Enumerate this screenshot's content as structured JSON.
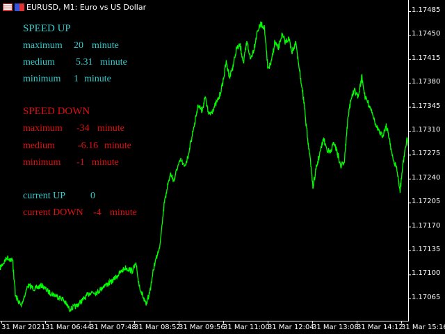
{
  "window": {
    "title": "EURUSD, M1:  Euro vs US Dollar",
    "icons": [
      "table-icon",
      "chart-type-icon"
    ]
  },
  "speed_up": {
    "title": "SPEED UP",
    "rows": [
      {
        "label": "maximum",
        "value": "20",
        "unit": "minute"
      },
      {
        "label": "medium",
        "value": "5.31",
        "unit": "minute"
      },
      {
        "label": "minimum",
        "value": "1",
        "unit": "minute"
      }
    ],
    "color": "#33cccc"
  },
  "speed_down": {
    "title": "SPEED DOWN",
    "rows": [
      {
        "label": "maximum",
        "value": "-34",
        "unit": "minute"
      },
      {
        "label": "medium",
        "value": "-6.16",
        "unit": "minute"
      },
      {
        "label": "minimum",
        "value": "-1",
        "unit": "minute"
      }
    ],
    "color": "#e01010"
  },
  "current": {
    "up_label": "current UP",
    "up_value": "0",
    "down_label": "current DOWN",
    "down_value": "-4",
    "down_unit": "minute"
  },
  "chart_data": {
    "type": "line",
    "symbol": "EURUSD",
    "timeframe": "M1",
    "line_color": "#00ff00",
    "y_ticks": [
      "1.17485",
      "1.17450",
      "1.17415",
      "1.17380",
      "1.17345",
      "1.17310",
      "1.17275",
      "1.17240",
      "1.17205",
      "1.17170",
      "1.17135",
      "1.17100",
      "1.17065"
    ],
    "x_ticks": [
      "31 Mar 2021",
      "31 Mar 06:44",
      "31 Mar 07:48",
      "31 Mar 08:52",
      "31 Mar 09:56",
      "31 Mar 11:00",
      "31 Mar 12:04",
      "31 Mar 13:08",
      "31 Mar 14:12",
      "31 Mar 15:16"
    ],
    "ylim": [
      1.17048,
      1.175
    ],
    "x": [
      "05:39",
      "05:49",
      "05:57",
      "06:01",
      "06:09",
      "06:19",
      "06:29",
      "06:39",
      "06:49",
      "06:59",
      "07:09",
      "07:19",
      "07:29",
      "07:39",
      "07:49",
      "07:59",
      "08:09",
      "08:19",
      "08:29",
      "08:39",
      "08:49",
      "08:54",
      "08:59",
      "09:09",
      "09:14",
      "09:21",
      "09:29",
      "09:34",
      "09:39",
      "09:44",
      "09:49",
      "09:54",
      "09:59",
      "10:04",
      "10:09",
      "10:14",
      "10:19",
      "10:24",
      "10:29",
      "10:34",
      "10:39",
      "10:44",
      "10:49",
      "10:54",
      "10:59",
      "11:04",
      "11:09",
      "11:14",
      "11:19",
      "11:24",
      "11:29",
      "11:34",
      "11:39",
      "11:44",
      "11:49",
      "11:54",
      "11:59",
      "12:04",
      "12:09",
      "12:14",
      "12:19",
      "12:24",
      "12:29",
      "12:34",
      "12:39",
      "12:44",
      "12:49",
      "12:54",
      "12:59",
      "13:04",
      "13:09",
      "13:14",
      "13:19",
      "13:24",
      "13:29",
      "13:34",
      "13:39",
      "13:44",
      "13:49",
      "13:54",
      "13:59",
      "14:04",
      "14:09",
      "14:14",
      "14:19",
      "14:24",
      "14:29",
      "14:34",
      "14:39",
      "14:44",
      "14:49",
      "14:54",
      "14:59",
      "15:04",
      "15:09",
      "15:14",
      "15:19",
      "15:24",
      "15:26"
    ],
    "values": [
      1.1711,
      1.17125,
      1.1712,
      1.17069,
      1.17054,
      1.17084,
      1.17079,
      1.17084,
      1.17074,
      1.17069,
      1.17064,
      1.17049,
      1.17054,
      1.17064,
      1.17074,
      1.17074,
      1.17084,
      1.17089,
      1.171,
      1.1711,
      1.17105,
      1.17115,
      1.17084,
      1.17054,
      1.17074,
      1.17115,
      1.17145,
      1.17196,
      1.17227,
      1.17247,
      1.17237,
      1.17257,
      1.17267,
      1.17257,
      1.17272,
      1.17298,
      1.17323,
      1.17349,
      1.17339,
      1.17359,
      1.17333,
      1.17339,
      1.17349,
      1.17359,
      1.17379,
      1.1741,
      1.17389,
      1.17405,
      1.1743,
      1.17435,
      1.1741,
      1.1744,
      1.17415,
      1.1743,
      1.17456,
      1.17466,
      1.17461,
      1.174,
      1.1741,
      1.1744,
      1.1743,
      1.1745,
      1.1744,
      1.17445,
      1.17425,
      1.1744,
      1.174,
      1.17369,
      1.17318,
      1.17278,
      1.17227,
      1.17257,
      1.17278,
      1.17298,
      1.17283,
      1.17278,
      1.17293,
      1.17278,
      1.17257,
      1.17267,
      1.17328,
      1.17359,
      1.17369,
      1.17359,
      1.17389,
      1.17359,
      1.17349,
      1.17339,
      1.17318,
      1.17308,
      1.17303,
      1.17318,
      1.17298,
      1.17267,
      1.17257,
      1.17222,
      1.17267,
      1.17298,
      1.17288
    ]
  }
}
